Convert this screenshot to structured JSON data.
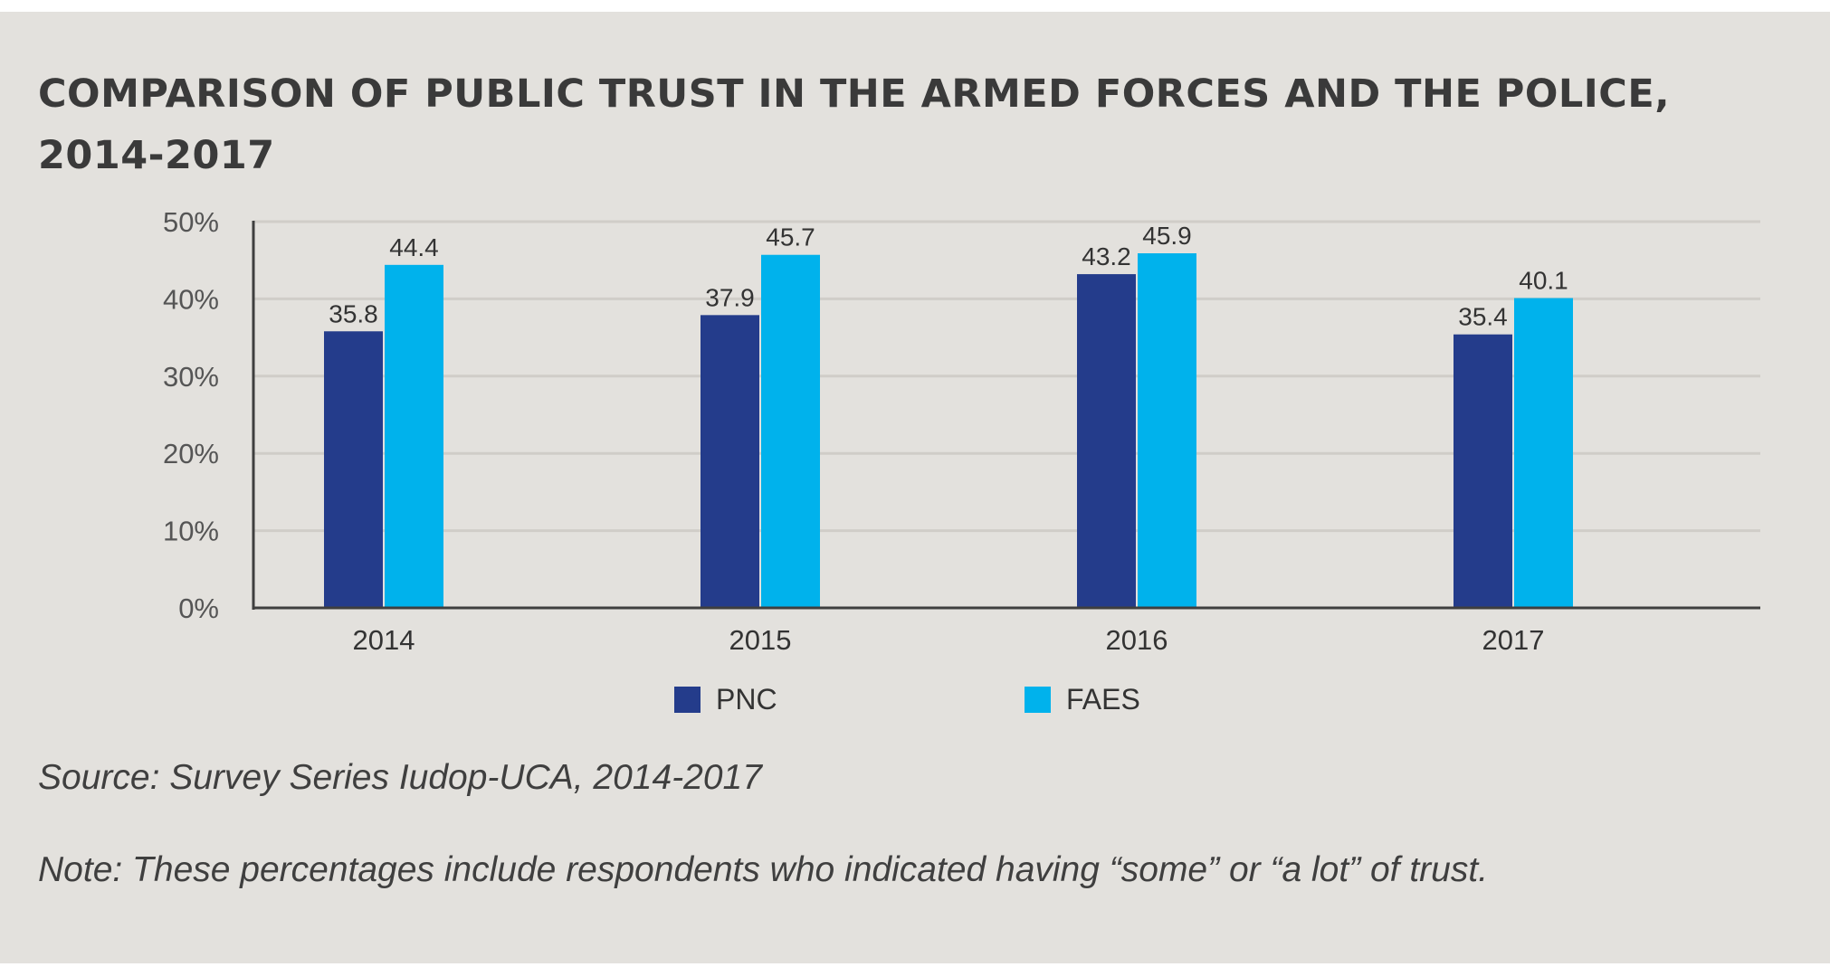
{
  "chart_data": {
    "type": "bar",
    "title": "COMPARISON OF PUBLIC TRUST IN THE ARMED FORCES AND THE POLICE, 2014-2017",
    "categories": [
      "2014",
      "2015",
      "2016",
      "2017"
    ],
    "series": [
      {
        "name": "PNC",
        "values": [
          35.8,
          37.9,
          43.2,
          35.4
        ],
        "labels": [
          "35.8",
          "37.9",
          "43.2",
          "35.4"
        ],
        "color": "#243c8b"
      },
      {
        "name": "FAES",
        "values": [
          44.4,
          45.7,
          45.9,
          40.1
        ],
        "labels": [
          "44.4",
          "45.7",
          "45.9",
          "40.1"
        ],
        "color": "#00b2ec"
      }
    ],
    "xlabel": "",
    "ylabel": "",
    "ylim": [
      0,
      50
    ],
    "yticks": [
      {
        "value": 0,
        "label": "0%"
      },
      {
        "value": 10,
        "label": "10%"
      },
      {
        "value": 20,
        "label": "20%"
      },
      {
        "value": 30,
        "label": "30%"
      },
      {
        "value": 40,
        "label": "40%"
      },
      {
        "value": 50,
        "label": "50%"
      }
    ],
    "grid": true,
    "legend": "bottom-center",
    "colors": {
      "background": "#e3e1dd",
      "grid": "#d0cdc8",
      "axis": "#3f3f3f",
      "text": "#333333"
    }
  },
  "notes": {
    "source": "Source: Survey Series Iudop-UCA, 2014-2017",
    "note": "Note: These percentages include respondents who indicated having “some” or “a lot” of trust."
  }
}
